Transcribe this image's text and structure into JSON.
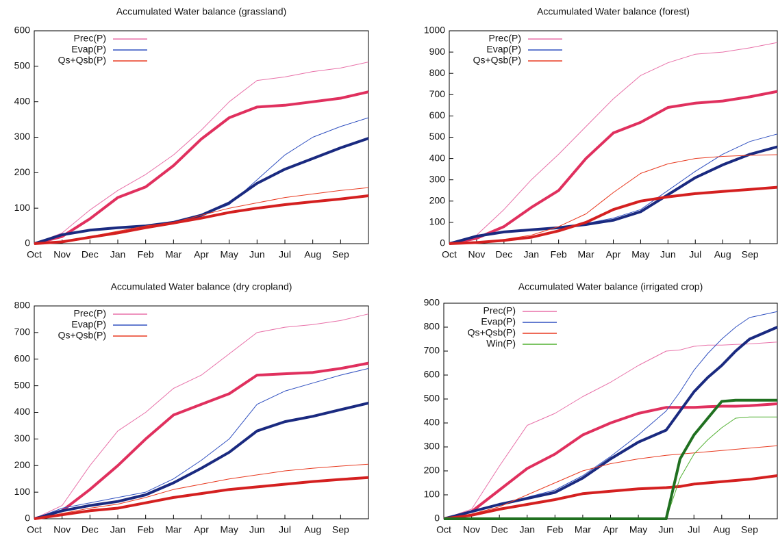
{
  "chart_data": [
    {
      "type": "line",
      "title": "Accumulated Water balance (grassland)",
      "x": [
        0,
        1,
        2,
        3,
        4,
        5,
        6,
        7,
        8,
        9,
        10,
        11,
        12
      ],
      "xlim": [
        0,
        12
      ],
      "xticks": [
        {
          "value": 0,
          "label": "Oct"
        },
        {
          "value": 1,
          "label": "Nov"
        },
        {
          "value": 2,
          "label": "Dec"
        },
        {
          "value": 3,
          "label": "Jan"
        },
        {
          "value": 4,
          "label": "Feb"
        },
        {
          "value": 5,
          "label": "Mar"
        },
        {
          "value": 6,
          "label": "Apr"
        },
        {
          "value": 7,
          "label": "May"
        },
        {
          "value": 8,
          "label": "Jun"
        },
        {
          "value": 9,
          "label": "Jul"
        },
        {
          "value": 10,
          "label": "Aug"
        },
        {
          "value": 11,
          "label": "Sep"
        }
      ],
      "ylim": [
        0,
        600
      ],
      "yticks": [
        0,
        100,
        200,
        300,
        400,
        500,
        600
      ],
      "series": [
        {
          "name": "Prec(P)",
          "color": "#e870a8",
          "width": 1,
          "values": [
            0,
            30,
            95,
            150,
            195,
            250,
            320,
            400,
            460,
            470,
            485,
            495,
            512
          ]
        },
        {
          "color": "#e0305e",
          "width": 4,
          "values": [
            0,
            20,
            70,
            130,
            160,
            220,
            295,
            355,
            385,
            390,
            400,
            410,
            428
          ]
        },
        {
          "name": "Evap(P)",
          "color": "#3050c0",
          "width": 1,
          "values": [
            0,
            25,
            40,
            45,
            50,
            60,
            80,
            110,
            180,
            250,
            300,
            330,
            355
          ]
        },
        {
          "color": "#1a2a80",
          "width": 4,
          "values": [
            0,
            25,
            38,
            45,
            50,
            60,
            80,
            115,
            170,
            210,
            240,
            270,
            297
          ]
        },
        {
          "name": "Qs+Qsb(P)",
          "color": "#e83a20",
          "width": 1,
          "values": [
            0,
            5,
            20,
            35,
            50,
            60,
            80,
            100,
            115,
            130,
            140,
            150,
            158
          ]
        },
        {
          "color": "#d42020",
          "width": 4,
          "values": [
            0,
            5,
            18,
            30,
            45,
            58,
            72,
            88,
            100,
            110,
            118,
            126,
            135
          ]
        }
      ]
    },
    {
      "type": "line",
      "title": "Accumulated Water balance (forest)",
      "x": [
        0,
        1,
        2,
        3,
        4,
        5,
        6,
        7,
        8,
        9,
        10,
        11,
        12
      ],
      "xlim": [
        0,
        12
      ],
      "xticks": [
        {
          "value": 0,
          "label": "Oct"
        },
        {
          "value": 1,
          "label": "Nov"
        },
        {
          "value": 2,
          "label": "Dec"
        },
        {
          "value": 3,
          "label": "Jan"
        },
        {
          "value": 4,
          "label": "Feb"
        },
        {
          "value": 5,
          "label": "Mar"
        },
        {
          "value": 6,
          "label": "Apr"
        },
        {
          "value": 7,
          "label": "May"
        },
        {
          "value": 8,
          "label": "Jun"
        },
        {
          "value": 9,
          "label": "Jul"
        },
        {
          "value": 10,
          "label": "Aug"
        },
        {
          "value": 11,
          "label": "Sep"
        }
      ],
      "ylim": [
        0,
        1000
      ],
      "yticks": [
        0,
        100,
        200,
        300,
        400,
        500,
        600,
        700,
        800,
        900,
        1000
      ],
      "series": [
        {
          "name": "Prec(P)",
          "color": "#e870a8",
          "width": 1,
          "values": [
            0,
            40,
            160,
            300,
            420,
            550,
            680,
            790,
            850,
            890,
            900,
            920,
            945
          ]
        },
        {
          "color": "#e0305e",
          "width": 4,
          "values": [
            0,
            25,
            80,
            170,
            250,
            400,
            520,
            570,
            640,
            660,
            670,
            690,
            715
          ]
        },
        {
          "name": "Evap(P)",
          "color": "#3050c0",
          "width": 1,
          "values": [
            0,
            35,
            55,
            65,
            75,
            95,
            120,
            160,
            250,
            340,
            420,
            480,
            515
          ]
        },
        {
          "color": "#1a2a80",
          "width": 4,
          "values": [
            0,
            35,
            55,
            65,
            75,
            90,
            110,
            150,
            230,
            310,
            370,
            420,
            455
          ]
        },
        {
          "name": "Qs+Qsb(P)",
          "color": "#e83a20",
          "width": 1,
          "values": [
            0,
            5,
            20,
            40,
            80,
            140,
            240,
            330,
            375,
            400,
            410,
            415,
            418
          ]
        },
        {
          "color": "#d42020",
          "width": 4,
          "values": [
            0,
            5,
            15,
            30,
            60,
            100,
            160,
            200,
            220,
            235,
            245,
            255,
            265
          ]
        }
      ]
    },
    {
      "type": "line",
      "title": "Accumulated Water balance (dry cropland)",
      "x": [
        0,
        1,
        2,
        3,
        4,
        5,
        6,
        7,
        8,
        9,
        10,
        11,
        12
      ],
      "xlim": [
        0,
        12
      ],
      "xticks": [
        {
          "value": 0,
          "label": "Oct"
        },
        {
          "value": 1,
          "label": "Nov"
        },
        {
          "value": 2,
          "label": "Dec"
        },
        {
          "value": 3,
          "label": "Jan"
        },
        {
          "value": 4,
          "label": "Feb"
        },
        {
          "value": 5,
          "label": "Mar"
        },
        {
          "value": 6,
          "label": "Apr"
        },
        {
          "value": 7,
          "label": "May"
        },
        {
          "value": 8,
          "label": "Jun"
        },
        {
          "value": 9,
          "label": "Jul"
        },
        {
          "value": 10,
          "label": "Aug"
        },
        {
          "value": 11,
          "label": "Sep"
        }
      ],
      "ylim": [
        0,
        800
      ],
      "yticks": [
        0,
        100,
        200,
        300,
        400,
        500,
        600,
        700,
        800
      ],
      "series": [
        {
          "name": "Prec(P)",
          "color": "#e870a8",
          "width": 1,
          "values": [
            0,
            50,
            200,
            330,
            400,
            490,
            540,
            620,
            700,
            720,
            730,
            745,
            770
          ]
        },
        {
          "color": "#e0305e",
          "width": 4,
          "values": [
            0,
            30,
            110,
            200,
            300,
            390,
            430,
            470,
            540,
            545,
            550,
            565,
            585
          ]
        },
        {
          "name": "Evap(P)",
          "color": "#3050c0",
          "width": 1,
          "values": [
            0,
            40,
            60,
            80,
            100,
            150,
            220,
            300,
            430,
            480,
            510,
            540,
            565
          ]
        },
        {
          "color": "#1a2a80",
          "width": 4,
          "values": [
            0,
            30,
            50,
            65,
            90,
            135,
            190,
            250,
            330,
            365,
            385,
            410,
            435
          ]
        },
        {
          "name": "Qs+Qsb(P)",
          "color": "#e83a20",
          "width": 1,
          "values": [
            0,
            20,
            40,
            55,
            80,
            110,
            130,
            150,
            165,
            180,
            190,
            198,
            205
          ]
        },
        {
          "color": "#d42020",
          "width": 4,
          "values": [
            0,
            15,
            30,
            40,
            60,
            80,
            95,
            110,
            120,
            130,
            140,
            148,
            155
          ]
        }
      ]
    },
    {
      "type": "line",
      "title": "Accumulated Water balance (irrigated crop)",
      "x": [
        0,
        1,
        2,
        3,
        4,
        5,
        6,
        7,
        8,
        8.5,
        9,
        9.5,
        10,
        10.5,
        11,
        12
      ],
      "xlim": [
        0,
        12
      ],
      "xticks": [
        {
          "value": 0,
          "label": "Oct"
        },
        {
          "value": 1,
          "label": "Nov"
        },
        {
          "value": 2,
          "label": "Dec"
        },
        {
          "value": 3,
          "label": "Jan"
        },
        {
          "value": 4,
          "label": "Feb"
        },
        {
          "value": 5,
          "label": "Mar"
        },
        {
          "value": 6,
          "label": "Apr"
        },
        {
          "value": 7,
          "label": "May"
        },
        {
          "value": 8,
          "label": "Jun"
        },
        {
          "value": 9,
          "label": "Jul"
        },
        {
          "value": 10,
          "label": "Aug"
        },
        {
          "value": 11,
          "label": "Sep"
        }
      ],
      "ylim": [
        0,
        900
      ],
      "yticks": [
        0,
        100,
        200,
        300,
        400,
        500,
        600,
        700,
        800,
        900
      ],
      "series": [
        {
          "name": "Prec(P)",
          "color": "#e870a8",
          "width": 1,
          "values": [
            0,
            40,
            220,
            390,
            440,
            510,
            570,
            640,
            700,
            705,
            720,
            725,
            725,
            728,
            730,
            738
          ]
        },
        {
          "color": "#e0305e",
          "width": 4,
          "values": [
            0,
            30,
            120,
            210,
            270,
            350,
            400,
            440,
            465,
            465,
            465,
            468,
            470,
            470,
            472,
            480
          ]
        },
        {
          "name": "Evap(P)",
          "color": "#3050c0",
          "width": 1,
          "values": [
            0,
            30,
            60,
            90,
            120,
            180,
            260,
            350,
            450,
            530,
            620,
            690,
            750,
            800,
            840,
            865
          ]
        },
        {
          "color": "#1a2a80",
          "width": 4,
          "values": [
            0,
            30,
            60,
            85,
            110,
            170,
            250,
            320,
            370,
            450,
            530,
            590,
            640,
            700,
            750,
            800
          ]
        },
        {
          "name": "Qs+Qsb(P)",
          "color": "#e83a20",
          "width": 1,
          "values": [
            0,
            20,
            50,
            100,
            150,
            200,
            230,
            250,
            265,
            270,
            275,
            280,
            285,
            290,
            295,
            305
          ]
        },
        {
          "color": "#d42020",
          "width": 4,
          "values": [
            0,
            15,
            40,
            60,
            80,
            105,
            115,
            125,
            130,
            135,
            145,
            150,
            155,
            160,
            165,
            180
          ]
        },
        {
          "name": "Win(P)",
          "color": "#50b030",
          "width": 1,
          "values": [
            0,
            0,
            0,
            0,
            0,
            0,
            0,
            0,
            0,
            170,
            270,
            330,
            380,
            420,
            425,
            425
          ]
        },
        {
          "color": "#207020",
          "width": 4,
          "values": [
            0,
            0,
            0,
            0,
            0,
            0,
            0,
            0,
            0,
            250,
            350,
            420,
            490,
            495,
            495,
            495
          ]
        }
      ]
    }
  ]
}
